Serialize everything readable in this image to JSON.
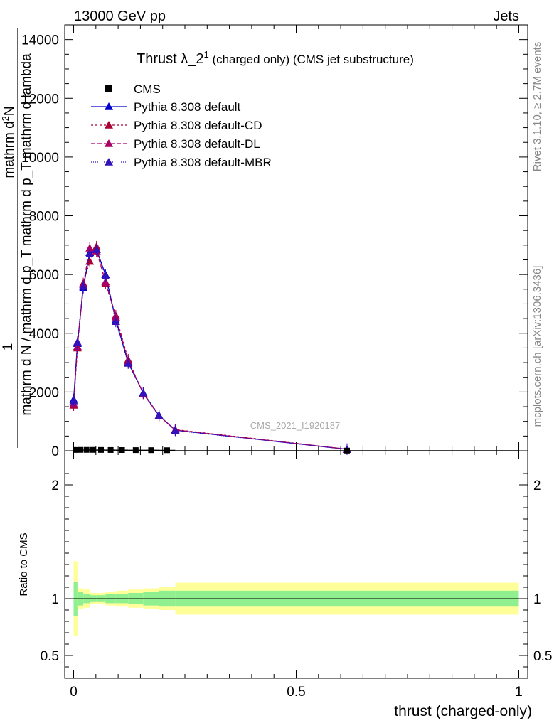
{
  "header": {
    "left": "13000 GeV pp",
    "right": "Jets"
  },
  "side": {
    "rivet": "Rivet 3.1.10, ≥ 2.7M events",
    "mcplots": "mcplots.cern.ch [arXiv:1306.3436]"
  },
  "chart_data": {
    "type": "line",
    "title_main": "Thrust λ_2",
    "title_sup": "1",
    "title_rest": " (charged only) (CMS jet substructure)",
    "watermark": "CMS_2021_I1920187",
    "ylabel_top_1": "mathrm d",
    "ylabel_top_sup": "2",
    "ylabel_top_2": "N",
    "ylabel_mid": "1",
    "ylabel_bottom": "mathrm d N / mathrm d p_T mathrm d p_T mathrm d lambda",
    "xlabel": "thrust (charged-only)",
    "ratio_ylabel": "Ratio to CMS",
    "xlim": [
      -0.02,
      1.02
    ],
    "ylim": [
      0,
      14500
    ],
    "ratio_ylim": [
      0.3,
      2.3
    ],
    "x_ticks": [
      {
        "v": 0,
        "label": "0"
      },
      {
        "v": 0.5,
        "label": "0.5"
      },
      {
        "v": 1,
        "label": "1"
      }
    ],
    "y_ticks": [
      {
        "v": 0,
        "label": "0"
      },
      {
        "v": 2000,
        "label": "2000"
      },
      {
        "v": 4000,
        "label": "4000"
      },
      {
        "v": 6000,
        "label": "6000"
      },
      {
        "v": 8000,
        "label": "8000"
      },
      {
        "v": 10000,
        "label": "10000"
      },
      {
        "v": 12000,
        "label": "12000"
      },
      {
        "v": 14000,
        "label": "14000"
      }
    ],
    "ratio_ticks": [
      {
        "v": 0.5,
        "label": "0.5"
      },
      {
        "v": 1,
        "label": "1"
      },
      {
        "v": 2,
        "label": "2"
      }
    ],
    "bin_edges": [
      0.0,
      0.0086,
      0.0217,
      0.0362,
      0.0514,
      0.0716,
      0.0948,
      0.1226,
      0.1563,
      0.1918,
      0.2283,
      1.0
    ],
    "cms": {
      "name": "CMS",
      "x": [
        0.0043,
        0.0152,
        0.029,
        0.0438,
        0.0615,
        0.0832,
        0.1087,
        0.1395,
        0.174,
        0.21,
        0.6142
      ],
      "y": [
        28,
        30,
        30,
        30,
        28,
        26,
        24,
        22,
        20,
        18,
        5
      ]
    },
    "ratio_bands": {
      "stat": [
        0.15,
        0.06,
        0.04,
        0.03,
        0.03,
        0.04,
        0.04,
        0.05,
        0.06,
        0.07,
        0.07
      ],
      "total": [
        0.33,
        0.09,
        0.08,
        0.05,
        0.05,
        0.06,
        0.07,
        0.08,
        0.09,
        0.1,
        0.14
      ]
    },
    "series": [
      {
        "name": "Pythia 8.308 default",
        "color": "#0000cc",
        "dash": "",
        "marker": "triangle",
        "y": [
          1750,
          3650,
          5550,
          6750,
          6850,
          6000,
          4450,
          3000,
          1970,
          1200,
          700,
          50
        ]
      },
      {
        "name": "Pythia 8.308 default-CD",
        "color": "#aa0033",
        "dash": "3,3",
        "marker": "triangle",
        "y": [
          1550,
          3500,
          5700,
          6450,
          6950,
          5700,
          4600,
          3100,
          1950,
          1180,
          720,
          55
        ]
      },
      {
        "name": "Pythia 8.308 default-DL",
        "color": "#aa0066",
        "dash": "6,3",
        "marker": "triangle",
        "y": [
          1600,
          3550,
          5650,
          6900,
          6800,
          5750,
          4550,
          3050,
          1960,
          1190,
          710,
          52
        ]
      },
      {
        "name": "Pythia 8.308 default-MBR",
        "color": "#3311bb",
        "dash": "1,2",
        "marker": "triangle",
        "y": [
          1700,
          3700,
          5600,
          6700,
          6850,
          5950,
          4400,
          2980,
          1975,
          1210,
          690,
          48
        ]
      }
    ],
    "series_x": [
      0.0,
      0.0086,
      0.0217,
      0.0362,
      0.0514,
      0.0716,
      0.0948,
      0.1226,
      0.1563,
      0.1918,
      0.2283,
      0.6142
    ],
    "colors": {
      "stat_band": "#90f090",
      "total_band": "#ffff99"
    }
  }
}
